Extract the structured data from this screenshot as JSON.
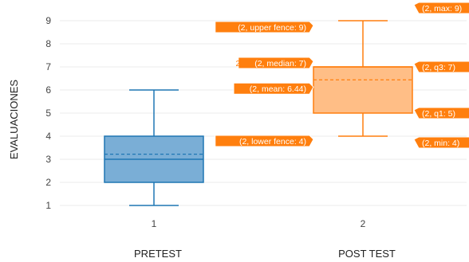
{
  "chart_data": {
    "type": "box",
    "ylabel": "EVALUACIONES",
    "ylim": [
      0.6,
      9.4
    ],
    "yticks": [
      1,
      2,
      3,
      4,
      5,
      6,
      7,
      8,
      9
    ],
    "boxes": [
      {
        "x": 1,
        "x_tick_label": "1",
        "group_label": "PRETEST",
        "color": "#1f77b4",
        "fill": "#7aaed6",
        "min": 1,
        "q1": 2,
        "median": 3,
        "mean": 3.22,
        "q3": 4,
        "upper_fence": 6,
        "lower_fence": 1,
        "max": 6
      },
      {
        "x": 2,
        "x_tick_label": "2",
        "group_label": "POST TEST",
        "color": "#ff7f0e",
        "fill": "#ffbe86",
        "min": 4,
        "q1": 5,
        "median": 7,
        "mean": 6.44,
        "q3": 7,
        "upper_fence": 9,
        "lower_fence": 4,
        "max": 9
      }
    ],
    "hover_labels": [
      {
        "text": "(2, max: 9)",
        "value": 9,
        "side": "right"
      },
      {
        "text": "(2, upper fence: 9)",
        "value": 9,
        "side": "left"
      },
      {
        "text": "(2, median: 7)",
        "value": 7,
        "side": "left"
      },
      {
        "text": "(2, mean: 6.44)",
        "value": 6.44,
        "side": "left"
      },
      {
        "text": "(2, q3: 7)",
        "value": 7,
        "side": "right"
      },
      {
        "text": "(2, q1: 5)",
        "value": 5,
        "side": "right"
      },
      {
        "text": "(2, lower fence: 4)",
        "value": 4,
        "side": "left"
      },
      {
        "text": "(2, min: 4)",
        "value": 4,
        "side": "right"
      }
    ],
    "outside_label": "2",
    "grid": true
  }
}
